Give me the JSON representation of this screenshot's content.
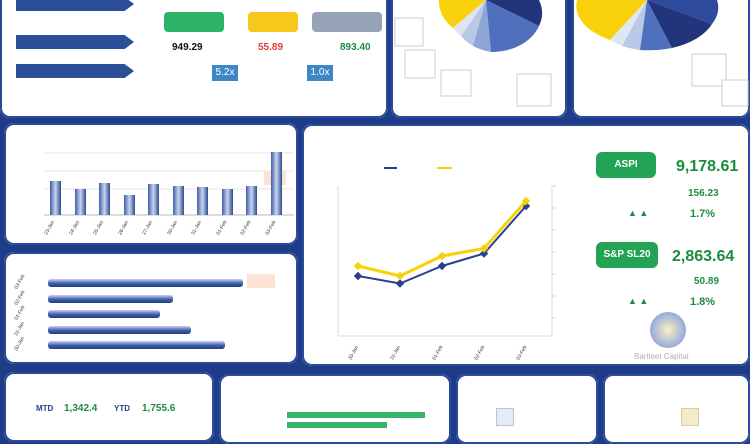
{
  "summary": {
    "values": [
      "949.29",
      "55.89",
      "893.40"
    ],
    "value_colors": [
      "#111111",
      "#e23b3b",
      "#1c8c3f"
    ],
    "pill_colors": [
      "#2eb368",
      "#f7c81b",
      "#97a3b6"
    ],
    "ratios": [
      "5.2x",
      "1.0x"
    ]
  },
  "mini_bar_chart": {
    "type": "bar",
    "categories": [
      "23-Jan",
      "24-Jan",
      "25-Jan",
      "26-Jan",
      "27-Jan",
      "30-Jan",
      "31-Jan",
      "01-Feb",
      "02-Feb",
      "03-Feb"
    ],
    "values": [
      23,
      18,
      22,
      14,
      21,
      20,
      19,
      18,
      20,
      43
    ],
    "ylim": [
      0,
      48
    ]
  },
  "hbar_chart": {
    "type": "bar",
    "categories": [
      "03-Feb",
      "02-Feb",
      "01-Feb",
      "31-Jan",
      "30-Jan"
    ],
    "values": [
      195,
      125,
      112,
      143,
      177
    ],
    "xlim": [
      0,
      200
    ]
  },
  "chart_data": {
    "type": "line",
    "categories": [
      "30-Jan",
      "31-Jan",
      "01-Feb",
      "02-Feb",
      "03-Feb"
    ],
    "series": [
      {
        "values": [
          2,
          0.5,
          4,
          6.5,
          16
        ]
      },
      {
        "values": [
          4,
          2,
          6,
          7.5,
          17
        ]
      }
    ],
    "ylim": [
      -10,
      20
    ]
  },
  "indices": {
    "aspi": {
      "label": "ASPI",
      "value": "9,178.61",
      "change": "156.23",
      "pct": "1.7%"
    },
    "sp": {
      "label": "S&P SL20",
      "value": "2,863.64",
      "change": "50.89",
      "pct": "1.8%"
    },
    "arrows_glyph": "▲ ▲"
  },
  "logo_caption": "Bartleet Capital",
  "bottom": {
    "mtd_label": "MTD",
    "mtd_value": "1,342.4",
    "ytd_label": "YTD",
    "ytd_value": "1,755.6"
  },
  "colors": {
    "navy": "#2b3f8f",
    "yellow": "#f9d10a",
    "green": "#23a455"
  }
}
